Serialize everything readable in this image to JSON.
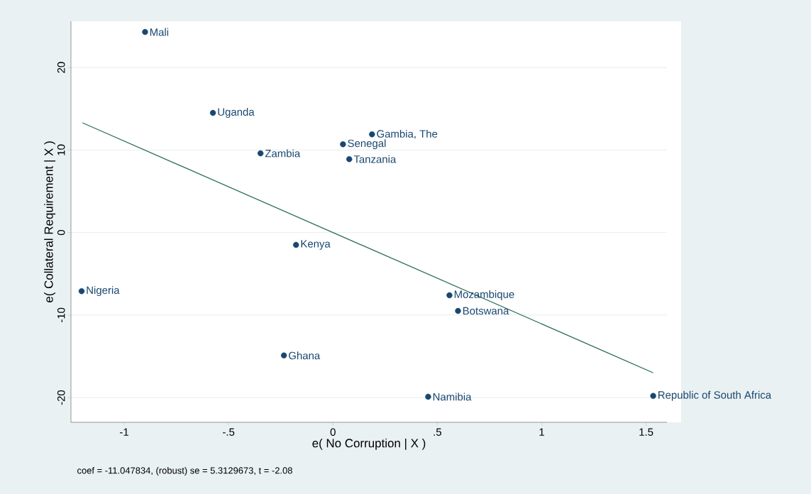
{
  "chart_data": {
    "type": "scatter",
    "xlabel": "e( No Corruption | X )",
    "ylabel": "e( Collateral Requirement | X )",
    "xlim": [
      -1.255,
      1.6
    ],
    "ylim": [
      -23,
      25.6
    ],
    "xticks": [
      {
        "value": -1,
        "label": "-1"
      },
      {
        "value": -0.5,
        "label": "-.5"
      },
      {
        "value": 0,
        "label": "0"
      },
      {
        "value": 0.5,
        "label": ".5"
      },
      {
        "value": 1,
        "label": "1"
      },
      {
        "value": 1.5,
        "label": "1.5"
      }
    ],
    "yticks": [
      -20,
      -10,
      0,
      10,
      20
    ],
    "grid": "y",
    "series": [
      {
        "marker": "circle",
        "color": "#1a476f",
        "x": [
          -0.9,
          -0.575,
          -0.347,
          0.187,
          0.048,
          0.078,
          -0.177,
          -1.204,
          0.558,
          0.599,
          -0.235,
          0.456,
          1.534
        ],
        "values": [
          24.3,
          14.5,
          9.6,
          11.9,
          10.7,
          8.9,
          -1.5,
          -7.1,
          -7.6,
          -9.5,
          -14.9,
          -19.9,
          -19.8
        ]
      },
      {
        "type": "line",
        "color": "#2e6e5e",
        "x": [
          -1.2,
          1.534
        ],
        "values": [
          13.3,
          -17.0
        ]
      }
    ],
    "annotations": [
      {
        "text": "Mali",
        "x": -0.9,
        "y": 24.3
      },
      {
        "text": "Uganda",
        "x": -0.575,
        "y": 14.5
      },
      {
        "text": "Zambia",
        "x": -0.347,
        "y": 9.6
      },
      {
        "text": "Gambia, The",
        "x": 0.187,
        "y": 11.9
      },
      {
        "text": "Senegal",
        "x": 0.048,
        "y": 10.7
      },
      {
        "text": "Tanzania",
        "x": 0.078,
        "y": 8.9
      },
      {
        "text": "Kenya",
        "x": -0.177,
        "y": -1.5
      },
      {
        "text": "Nigeria",
        "x": -1.204,
        "y": -7.1
      },
      {
        "text": "Mozambique",
        "x": 0.558,
        "y": -7.6
      },
      {
        "text": "Botswana",
        "x": 0.599,
        "y": -9.5
      },
      {
        "text": "Ghana",
        "x": -0.235,
        "y": -14.9
      },
      {
        "text": "Namibia",
        "x": 0.456,
        "y": -19.9
      },
      {
        "text": "Republic of South Africa",
        "x": 1.534,
        "y": -19.8
      },
      "coef = -11.047834, (robust) se = 5.3129673, t = -2.08"
    ]
  }
}
